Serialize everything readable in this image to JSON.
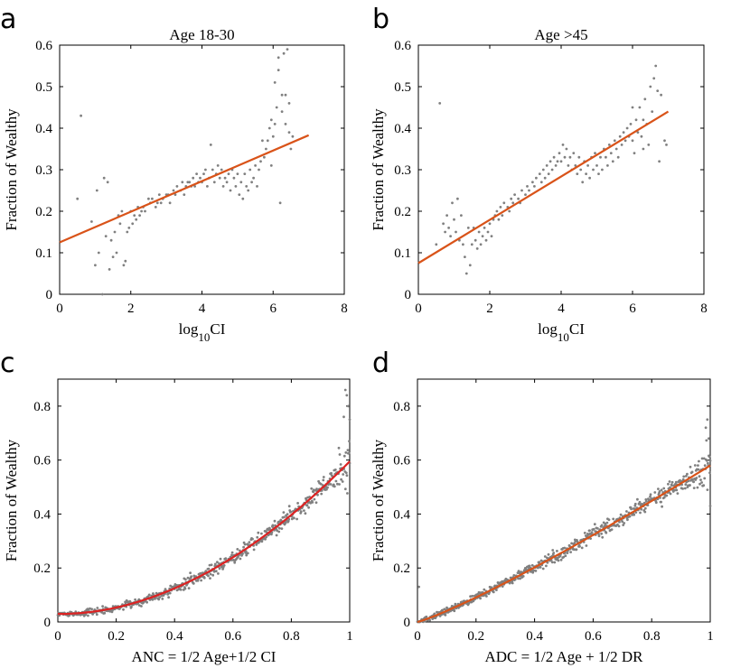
{
  "colors": {
    "points": "#808080",
    "fit": "#D95319",
    "fit_c": "#DD2222",
    "axis": "#000000"
  },
  "chart_data": [
    {
      "type": "scatter",
      "panel": "a",
      "title": "Age 18-30",
      "xlabel": "log",
      "xlabel_sub": "10",
      "xlabel_suffix": "CI",
      "ylabel": "Fraction of Wealthy",
      "xlim": [
        0,
        8
      ],
      "ylim": [
        0,
        0.6
      ],
      "xticks": [
        "0",
        "2",
        "4",
        "6",
        "8"
      ],
      "yticks": [
        "0",
        "0.1",
        "0.2",
        "0.3",
        "0.4",
        "0.5",
        "0.6"
      ],
      "fit": {
        "x": [
          0,
          7
        ],
        "y": [
          0.125,
          0.383
        ]
      },
      "points": [
        [
          0.6,
          0.43
        ],
        [
          0.5,
          0.23
        ],
        [
          0.9,
          0.175
        ],
        [
          1.0,
          0.07
        ],
        [
          1.05,
          0.25
        ],
        [
          1.1,
          0.1
        ],
        [
          1.2,
          0.0
        ],
        [
          1.25,
          0.28
        ],
        [
          1.3,
          0.14
        ],
        [
          1.35,
          0.27
        ],
        [
          1.4,
          0.06
        ],
        [
          1.45,
          0.13
        ],
        [
          1.5,
          0.09
        ],
        [
          1.55,
          0.15
        ],
        [
          1.6,
          0.1
        ],
        [
          1.65,
          0.19
        ],
        [
          1.7,
          0.17
        ],
        [
          1.75,
          0.2
        ],
        [
          1.8,
          0.07
        ],
        [
          1.85,
          0.08
        ],
        [
          1.9,
          0.15
        ],
        [
          1.95,
          0.16
        ],
        [
          2.0,
          0.2
        ],
        [
          2.05,
          0.17
        ],
        [
          2.1,
          0.19
        ],
        [
          2.15,
          0.18
        ],
        [
          2.2,
          0.21
        ],
        [
          2.25,
          0.19
        ],
        [
          2.3,
          0.2
        ],
        [
          2.35,
          0.21
        ],
        [
          2.4,
          0.2
        ],
        [
          2.5,
          0.23
        ],
        [
          2.55,
          0.22
        ],
        [
          2.6,
          0.23
        ],
        [
          2.7,
          0.21
        ],
        [
          2.75,
          0.22
        ],
        [
          2.8,
          0.24
        ],
        [
          2.85,
          0.22
        ],
        [
          2.9,
          0.23
        ],
        [
          3.0,
          0.24
        ],
        [
          3.05,
          0.24
        ],
        [
          3.1,
          0.22
        ],
        [
          3.2,
          0.25
        ],
        [
          3.25,
          0.24
        ],
        [
          3.3,
          0.26
        ],
        [
          3.4,
          0.25
        ],
        [
          3.45,
          0.27
        ],
        [
          3.5,
          0.24
        ],
        [
          3.55,
          0.26
        ],
        [
          3.6,
          0.27
        ],
        [
          3.65,
          0.27
        ],
        [
          3.7,
          0.26
        ],
        [
          3.75,
          0.28
        ],
        [
          3.8,
          0.26
        ],
        [
          3.85,
          0.29
        ],
        [
          3.9,
          0.27
        ],
        [
          3.95,
          0.28
        ],
        [
          4.0,
          0.27
        ],
        [
          4.05,
          0.29
        ],
        [
          4.1,
          0.3
        ],
        [
          4.15,
          0.26
        ],
        [
          4.2,
          0.28
        ],
        [
          4.25,
          0.36
        ],
        [
          4.3,
          0.3
        ],
        [
          4.35,
          0.27
        ],
        [
          4.4,
          0.29
        ],
        [
          4.45,
          0.31
        ],
        [
          4.5,
          0.28
        ],
        [
          4.55,
          0.3
        ],
        [
          4.6,
          0.26
        ],
        [
          4.65,
          0.28
        ],
        [
          4.7,
          0.27
        ],
        [
          4.75,
          0.29
        ],
        [
          4.8,
          0.25
        ],
        [
          4.85,
          0.3
        ],
        [
          4.9,
          0.28
        ],
        [
          4.95,
          0.26
        ],
        [
          5.0,
          0.29
        ],
        [
          5.05,
          0.24
        ],
        [
          5.1,
          0.27
        ],
        [
          5.15,
          0.23
        ],
        [
          5.2,
          0.29
        ],
        [
          5.25,
          0.26
        ],
        [
          5.3,
          0.25
        ],
        [
          5.35,
          0.3
        ],
        [
          5.4,
          0.27
        ],
        [
          5.45,
          0.28
        ],
        [
          5.5,
          0.31
        ],
        [
          5.55,
          0.26
        ],
        [
          5.6,
          0.3
        ],
        [
          5.65,
          0.32
        ],
        [
          5.7,
          0.37
        ],
        [
          5.75,
          0.33
        ],
        [
          5.8,
          0.35
        ],
        [
          5.85,
          0.37
        ],
        [
          5.9,
          0.4
        ],
        [
          5.95,
          0.42
        ],
        [
          6.0,
          0.38
        ],
        [
          6.05,
          0.41
        ],
        [
          6.1,
          0.45
        ],
        [
          6.15,
          0.57
        ],
        [
          6.2,
          0.22
        ],
        [
          6.25,
          0.48
        ],
        [
          6.3,
          0.58
        ],
        [
          6.35,
          0.41
        ],
        [
          6.4,
          0.59
        ],
        [
          6.45,
          0.46
        ],
        [
          6.5,
          0.35
        ],
        [
          6.55,
          0.38
        ],
        [
          6.05,
          0.51
        ],
        [
          6.15,
          0.54
        ],
        [
          5.95,
          0.31
        ],
        [
          6.35,
          0.48
        ],
        [
          6.25,
          0.44
        ],
        [
          6.45,
          0.39
        ]
      ]
    },
    {
      "type": "scatter",
      "panel": "b",
      "title": "Age >45",
      "xlabel": "log",
      "xlabel_sub": "10",
      "xlabel_suffix": "CI",
      "ylabel": "Fraction of Wealthy",
      "xlim": [
        0,
        8
      ],
      "ylim": [
        0,
        0.6
      ],
      "xticks": [
        "0",
        "2",
        "4",
        "6",
        "8"
      ],
      "yticks": [
        "0",
        "0.1",
        "0.2",
        "0.3",
        "0.4",
        "0.5",
        "0.6"
      ],
      "fit": {
        "x": [
          0,
          7
        ],
        "y": [
          0.075,
          0.44
        ]
      },
      "points": [
        [
          0.5,
          0.12
        ],
        [
          0.6,
          0.46
        ],
        [
          0.7,
          0.17
        ],
        [
          0.75,
          0.15
        ],
        [
          0.8,
          0.19
        ],
        [
          0.85,
          0.16
        ],
        [
          0.9,
          0.14
        ],
        [
          0.95,
          0.22
        ],
        [
          1.0,
          0.18
        ],
        [
          1.05,
          0.15
        ],
        [
          1.1,
          0.23
        ],
        [
          1.15,
          0.13
        ],
        [
          1.2,
          0.19
        ],
        [
          1.25,
          0.12
        ],
        [
          1.3,
          0.09
        ],
        [
          1.35,
          0.05
        ],
        [
          1.4,
          0.16
        ],
        [
          1.45,
          0.07
        ],
        [
          1.5,
          0.12
        ],
        [
          1.55,
          0.16
        ],
        [
          1.6,
          0.13
        ],
        [
          1.65,
          0.11
        ],
        [
          1.7,
          0.15
        ],
        [
          1.75,
          0.12
        ],
        [
          1.8,
          0.14
        ],
        [
          1.85,
          0.16
        ],
        [
          1.9,
          0.13
        ],
        [
          1.95,
          0.15
        ],
        [
          2.0,
          0.17
        ],
        [
          2.05,
          0.14
        ],
        [
          2.1,
          0.18
        ],
        [
          2.15,
          0.19
        ],
        [
          2.2,
          0.2
        ],
        [
          2.25,
          0.18
        ],
        [
          2.3,
          0.21
        ],
        [
          2.35,
          0.19
        ],
        [
          2.4,
          0.22
        ],
        [
          2.5,
          0.21
        ],
        [
          2.55,
          0.2
        ],
        [
          2.6,
          0.23
        ],
        [
          2.65,
          0.22
        ],
        [
          2.7,
          0.24
        ],
        [
          2.8,
          0.23
        ],
        [
          2.85,
          0.22
        ],
        [
          2.9,
          0.25
        ],
        [
          3.0,
          0.24
        ],
        [
          3.05,
          0.26
        ],
        [
          3.1,
          0.25
        ],
        [
          3.2,
          0.27
        ],
        [
          3.25,
          0.26
        ],
        [
          3.3,
          0.28
        ],
        [
          3.4,
          0.29
        ],
        [
          3.45,
          0.27
        ],
        [
          3.5,
          0.3
        ],
        [
          3.55,
          0.28
        ],
        [
          3.6,
          0.31
        ],
        [
          3.65,
          0.29
        ],
        [
          3.7,
          0.32
        ],
        [
          3.75,
          0.3
        ],
        [
          3.8,
          0.33
        ],
        [
          3.85,
          0.31
        ],
        [
          3.9,
          0.32
        ],
        [
          3.95,
          0.34
        ],
        [
          4.0,
          0.32
        ],
        [
          4.05,
          0.36
        ],
        [
          4.1,
          0.33
        ],
        [
          4.15,
          0.35
        ],
        [
          4.2,
          0.31
        ],
        [
          4.25,
          0.33
        ],
        [
          4.3,
          0.3
        ],
        [
          4.35,
          0.34
        ],
        [
          4.4,
          0.31
        ],
        [
          4.45,
          0.29
        ],
        [
          4.5,
          0.33
        ],
        [
          4.55,
          0.3
        ],
        [
          4.6,
          0.27
        ],
        [
          4.65,
          0.32
        ],
        [
          4.7,
          0.29
        ],
        [
          4.75,
          0.31
        ],
        [
          4.8,
          0.28
        ],
        [
          4.85,
          0.33
        ],
        [
          4.9,
          0.3
        ],
        [
          4.95,
          0.34
        ],
        [
          5.0,
          0.31
        ],
        [
          5.05,
          0.29
        ],
        [
          5.1,
          0.33
        ],
        [
          5.15,
          0.3
        ],
        [
          5.2,
          0.35
        ],
        [
          5.25,
          0.33
        ],
        [
          5.3,
          0.31
        ],
        [
          5.35,
          0.36
        ],
        [
          5.4,
          0.34
        ],
        [
          5.45,
          0.32
        ],
        [
          5.5,
          0.37
        ],
        [
          5.55,
          0.35
        ],
        [
          5.6,
          0.33
        ],
        [
          5.65,
          0.38
        ],
        [
          5.7,
          0.36
        ],
        [
          5.75,
          0.39
        ],
        [
          5.8,
          0.37
        ],
        [
          5.85,
          0.4
        ],
        [
          5.9,
          0.38
        ],
        [
          5.95,
          0.41
        ],
        [
          6.0,
          0.37
        ],
        [
          6.05,
          0.34
        ],
        [
          6.1,
          0.42
        ],
        [
          6.15,
          0.39
        ],
        [
          6.2,
          0.45
        ],
        [
          6.25,
          0.38
        ],
        [
          6.3,
          0.42
        ],
        [
          6.35,
          0.47
        ],
        [
          6.4,
          0.41
        ],
        [
          6.45,
          0.36
        ],
        [
          6.5,
          0.5
        ],
        [
          6.55,
          0.44
        ],
        [
          6.6,
          0.52
        ],
        [
          6.65,
          0.55
        ],
        [
          6.7,
          0.49
        ],
        [
          6.75,
          0.32
        ],
        [
          6.8,
          0.48
        ],
        [
          6.9,
          0.37
        ],
        [
          6.95,
          0.36
        ],
        [
          6.3,
          0.35
        ],
        [
          6.0,
          0.45
        ]
      ]
    },
    {
      "type": "scatter",
      "panel": "c",
      "title": "",
      "xlabel": "ANC = 1/2 Age+1/2 CI",
      "ylabel": "Fraction of Wealthy",
      "xlim": [
        0,
        1
      ],
      "ylim": [
        0,
        0.9
      ],
      "xticks": [
        "0",
        "0.2",
        "0.4",
        "0.6",
        "0.8",
        "1"
      ],
      "yticks": [
        "0",
        "0.2",
        "0.4",
        "0.6",
        "0.8"
      ],
      "fit_formula": "y = 0.03 + 0.585*(x^1.9) - 0.02*x",
      "fit_samples": 60
    },
    {
      "type": "scatter",
      "panel": "d",
      "title": "",
      "xlabel": "ADC = 1/2 Age + 1/2 DR",
      "ylabel": "Fraction of Wealthy",
      "xlim": [
        0,
        1
      ],
      "ylim": [
        0,
        0.9
      ],
      "xticks": [
        "0",
        "0.2",
        "0.4",
        "0.6",
        "0.8",
        "1"
      ],
      "yticks": [
        "0",
        "0.2",
        "0.4",
        "0.6",
        "0.8"
      ],
      "fit_formula": "y = 0.58*(x^1.15)",
      "fit_samples": 60
    }
  ]
}
